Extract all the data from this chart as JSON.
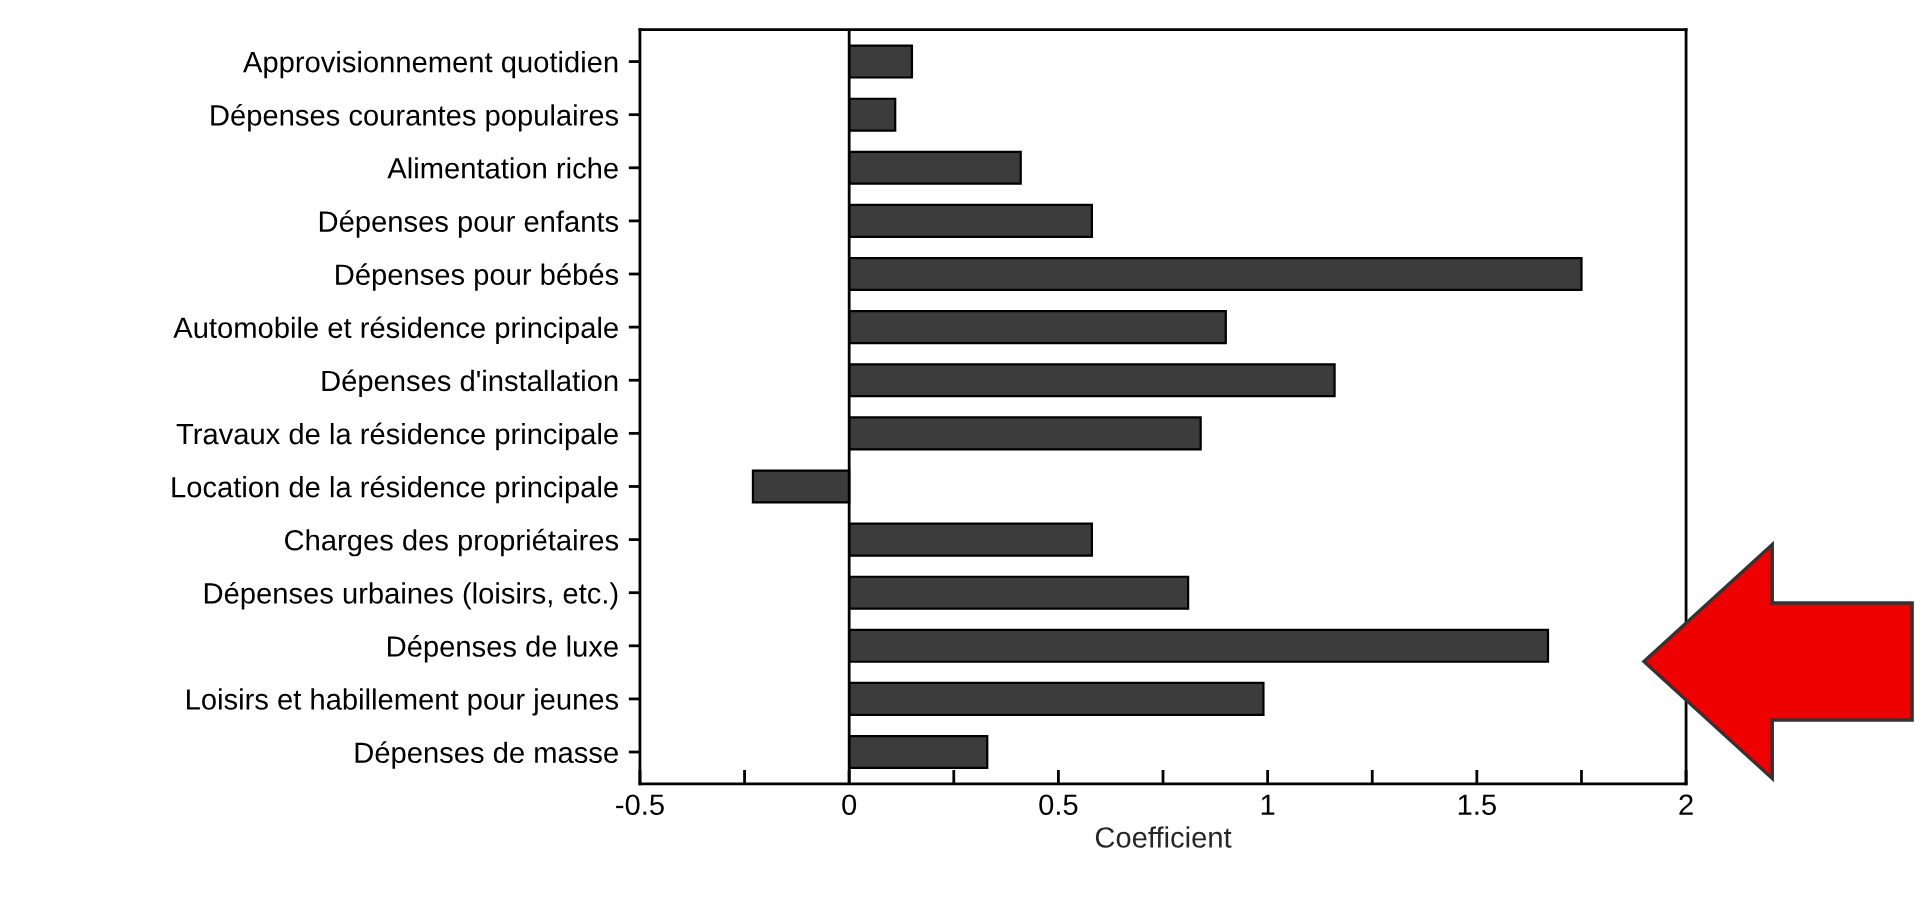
{
  "chart_data": {
    "type": "bar",
    "orientation": "horizontal",
    "xlabel": "Coefficient",
    "categories": [
      "Approvisionnement quotidien",
      "Dépenses courantes populaires",
      "Alimentation riche",
      "Dépenses pour enfants",
      "Dépenses pour bébés",
      "Automobile et résidence principale",
      "Dépenses d'installation",
      "Travaux de la résidence principale",
      "Location de la résidence principale",
      "Charges des propriétaires",
      "Dépenses urbaines (loisirs, etc.)",
      "Dépenses de luxe",
      "Loisirs et habillement pour jeunes",
      "Dépenses de masse"
    ],
    "values": [
      0.15,
      0.11,
      0.41,
      0.58,
      1.75,
      0.9,
      1.16,
      0.84,
      -0.23,
      0.58,
      0.81,
      1.67,
      0.99,
      0.33
    ],
    "color": "#3c3c3c",
    "xlim": [
      -0.5,
      2
    ],
    "xticks": [
      -0.5,
      {
        "value": -0.25,
        "label": null
      },
      0,
      {
        "value": 0.25,
        "label": null
      },
      0.5,
      {
        "value": 0.75,
        "label": null
      },
      1,
      {
        "value": 1.25,
        "label": null
      },
      1.5,
      {
        "value": 1.75,
        "label": null
      },
      2
    ],
    "ref_lines": [
      {
        "axis": "x",
        "value": 0,
        "label": null,
        "color": "#000000"
      }
    ],
    "grid": false,
    "legend": false
  }
}
